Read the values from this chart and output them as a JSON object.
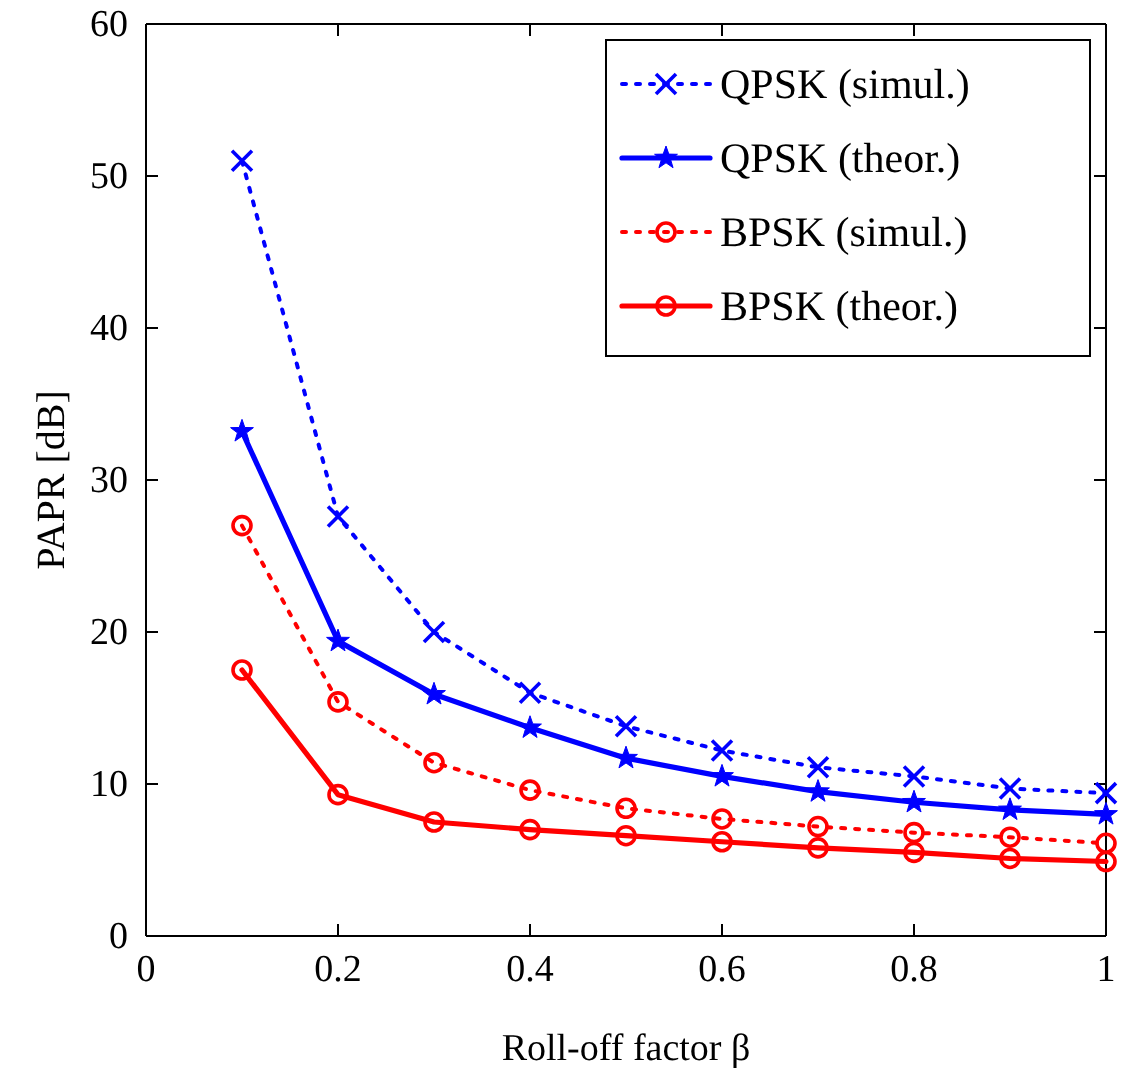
{
  "chart_data": {
    "type": "line",
    "xlabel": "Roll-off factor β",
    "ylabel": "PAPR [dB]",
    "x": [
      0.1,
      0.2,
      0.3,
      0.4,
      0.5,
      0.6,
      0.7,
      0.8,
      0.9,
      1.0
    ],
    "series": [
      {
        "name": "QPSK (simul.)",
        "color": "#0000ff",
        "marker": "cross",
        "line_style": "dotted",
        "values": [
          51.0,
          27.6,
          20.0,
          16.0,
          13.8,
          12.2,
          11.1,
          10.5,
          9.7,
          9.4
        ]
      },
      {
        "name": "QPSK (theor.)",
        "color": "#0000ff",
        "marker": "star",
        "line_style": "solid",
        "values": [
          33.2,
          19.4,
          15.9,
          13.7,
          11.7,
          10.5,
          9.5,
          8.8,
          8.3,
          8.0
        ]
      },
      {
        "name": "BPSK (simul.)",
        "color": "#ff0000",
        "marker": "circle",
        "line_style": "dotted",
        "values": [
          27.0,
          15.4,
          11.4,
          9.6,
          8.4,
          7.7,
          7.2,
          6.8,
          6.5,
          6.1
        ]
      },
      {
        "name": "BPSK (theor.)",
        "color": "#ff0000",
        "marker": "circle",
        "line_style": "solid",
        "values": [
          17.5,
          9.3,
          7.5,
          7.0,
          6.6,
          6.2,
          5.8,
          5.5,
          5.1,
          4.9
        ]
      }
    ],
    "xlim": [
      0,
      1
    ],
    "xticks": [
      0,
      0.2,
      0.4,
      0.6,
      0.8,
      1
    ],
    "ylim": [
      0,
      60
    ],
    "yticks": [
      0,
      10,
      20,
      30,
      40,
      50,
      60
    ],
    "grid": false,
    "legend": "top right"
  }
}
